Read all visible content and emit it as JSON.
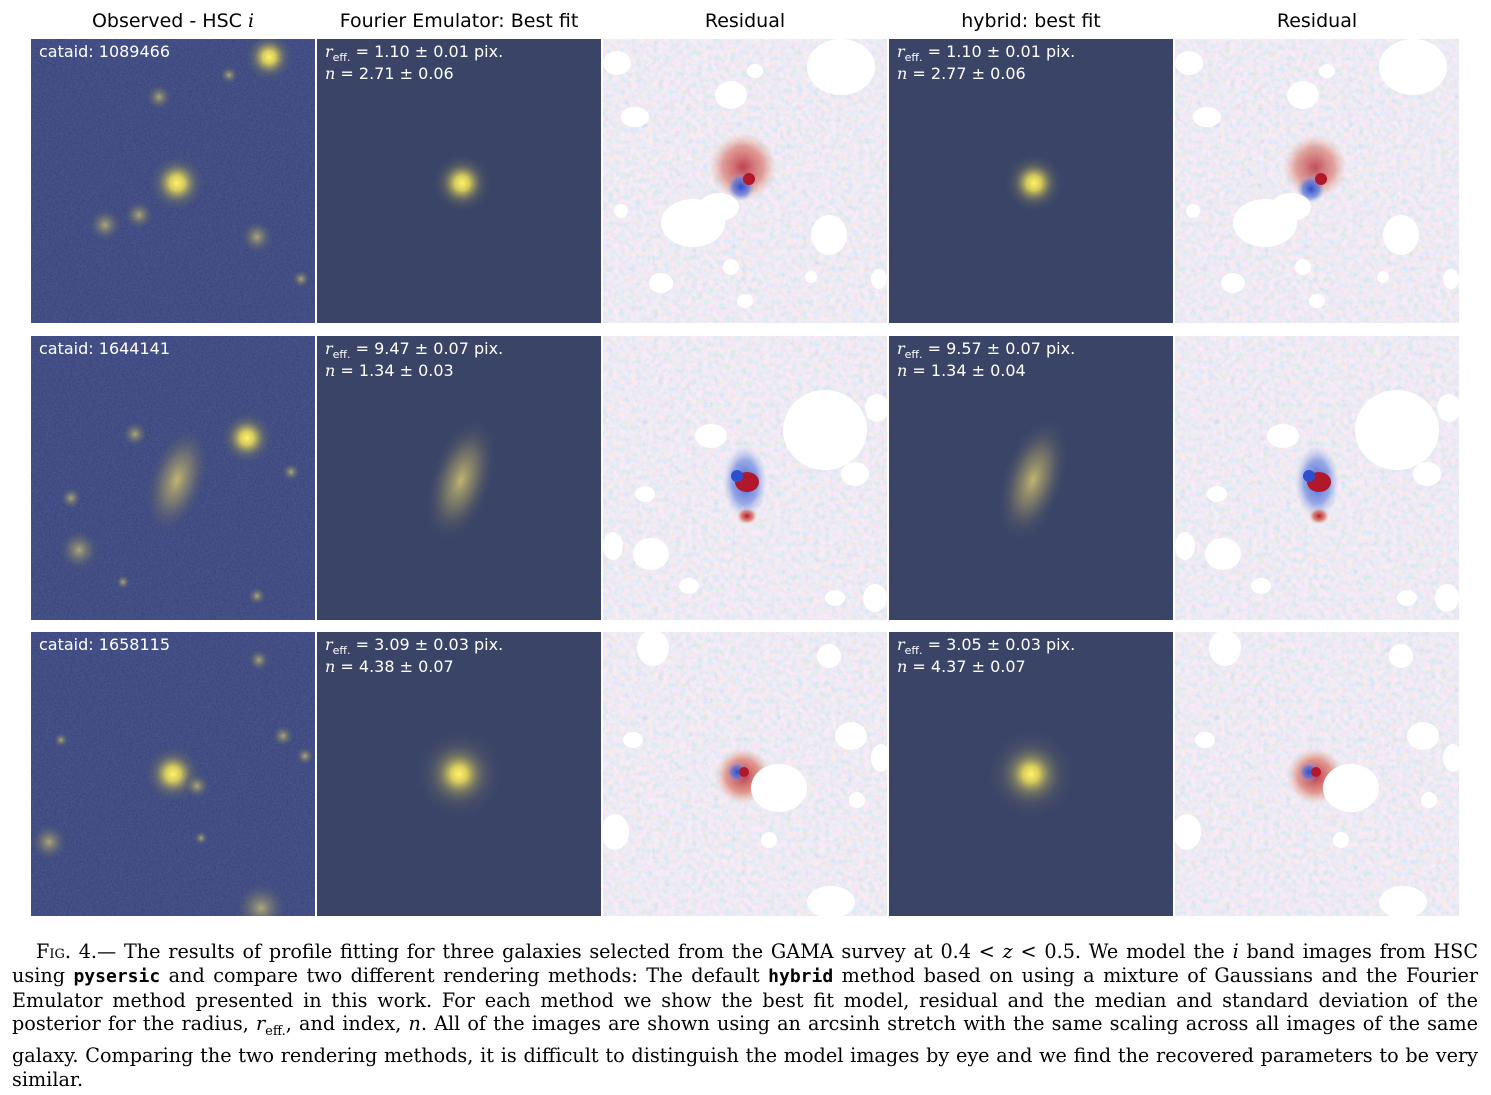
{
  "columns": [
    "Observed - HSC ",
    "Fourier Emulator: Best fit",
    "Residual",
    "hybrid: best fit",
    "Residual"
  ],
  "column_title_italic_suffix": "i",
  "rows": [
    {
      "cataid": "cataid: 1089466",
      "fe_reff": " = 1.10 ± 0.01 pix.",
      "fe_n": " = 2.71 ± 0.06",
      "hy_reff": " = 1.10 ± 0.01 pix.",
      "hy_n": " = 2.77 ± 0.06"
    },
    {
      "cataid": "cataid: 1644141",
      "fe_reff": " = 9.47 ± 0.07 pix.",
      "fe_n": " = 1.34 ± 0.03",
      "hy_reff": " = 9.57 ± 0.07 pix.",
      "hy_n": " = 1.34 ± 0.04"
    },
    {
      "cataid": "cataid: 1658115",
      "fe_reff": " = 3.09 ± 0.03 pix.",
      "fe_n": " = 4.38 ± 0.07",
      "hy_reff": " = 3.05 ± 0.03 pix.",
      "hy_n": " = 4.37 ± 0.07"
    }
  ],
  "symbols": {
    "r": "r",
    "eff_sub": "eff.",
    "n": "n"
  },
  "caption": {
    "label": "Fig. 4.—",
    "t1": " The results of profile fitting for three galaxies selected from the GAMA survey at 0.4 < ",
    "z": "z",
    "t2": " < 0.5. We model the ",
    "i": "i",
    "t3": " band images from HSC using ",
    "code1": "pysersic",
    "t4": " and compare two different rendering methods: The default ",
    "code2": "hybrid",
    "t5": " method based on using a mixture of Gaussians and the Fourier Emulator method presented in this work. For each method we show the best fit model, residual and the median and standard deviation of the posterior for the radius, ",
    "r": "r",
    "eff": "eff.",
    "t6": ", and index, ",
    "n": "n",
    "t7": ". All of the images are shown using an arcsinh stretch with the same scaling across all images of the same galaxy. Comparing the two rendering methods, it is difficult to distinguish the model images by eye and we find the recovered parameters to be very similar."
  },
  "colors": {
    "observed_background": "#27346e",
    "model_background": "#3a4467",
    "source_core": "#fff36a",
    "residual_positive": "#b2182b",
    "residual_negative": "#2c4fcf",
    "mask": "#ffffff"
  }
}
